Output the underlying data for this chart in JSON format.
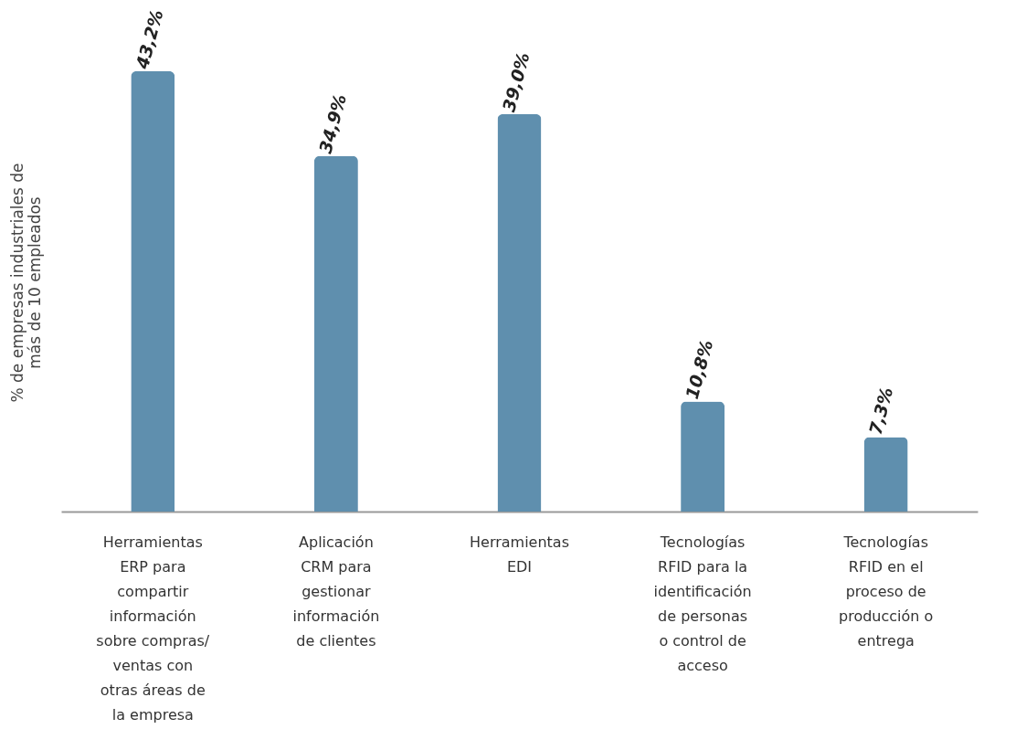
{
  "chart_data": {
    "type": "bar",
    "ylabel": "% de empresas industriales de\nmás de 10 empleados",
    "categories": [
      "Herramientas\nERP para\ncompartir\ninformación\nsobre compras/\nventas con\notras áreas de\nla empresa",
      "Aplicación\nCRM para\ngestionar\ninformación\nde clientes",
      "Herramientas\nEDI",
      "Tecnologías\nRFID para la\nidentificación\nde personas\no control de\nacceso",
      "Tecnologías\nRFID en el\nproceso de\nproducción o\nentrega"
    ],
    "values": [
      43.2,
      34.9,
      39.0,
      10.8,
      7.3
    ],
    "value_labels": [
      "43,2%",
      "34,9%",
      "39,0%",
      "10,8%",
      "7,3%"
    ],
    "color": "#5f8fae",
    "grid": false
  }
}
